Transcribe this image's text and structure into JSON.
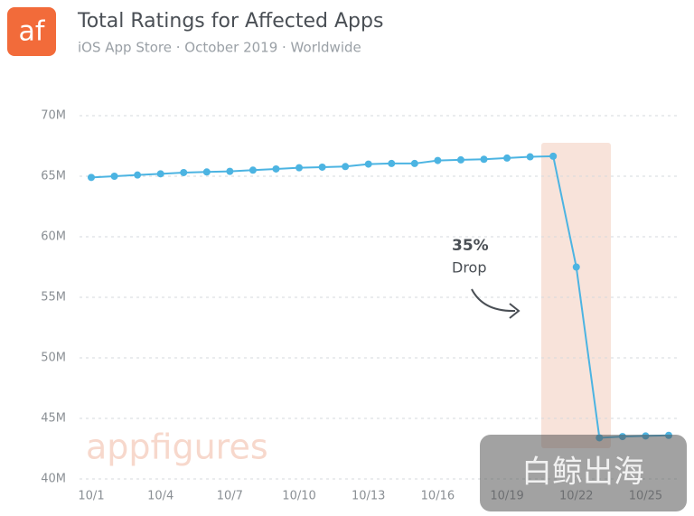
{
  "logo": "af",
  "watermark": "appfigures",
  "overlay_watermark": "白鲸出海",
  "chart_data": {
    "type": "line",
    "title": "Total Ratings for Affected Apps",
    "subtitle": "iOS App Store · October 2019 · Worldwide",
    "annotation": {
      "value": "35%",
      "text": "Drop"
    },
    "categories": [
      "10/1",
      null,
      null,
      "10/4",
      null,
      null,
      "10/7",
      null,
      null,
      "10/10",
      null,
      null,
      "10/13",
      null,
      null,
      "10/16",
      null,
      null,
      "10/19",
      null,
      null,
      "10/22",
      null,
      null,
      "10/25",
      null
    ],
    "series": [
      {
        "name": "Total Ratings",
        "color": "#4cb4e2",
        "values": [
          64900000,
          65000000,
          65100000,
          65200000,
          65300000,
          65350000,
          65400000,
          65500000,
          65600000,
          65700000,
          65750000,
          65800000,
          66000000,
          66050000,
          66050000,
          66300000,
          66350000,
          66400000,
          66500000,
          66600000,
          66650000,
          57500000,
          43400000,
          43500000,
          43550000,
          43600000
        ]
      }
    ],
    "ylim": [
      40000000,
      70000000
    ],
    "yticks": [
      {
        "value": 40000000,
        "label": "40M"
      },
      {
        "value": 45000000,
        "label": "45M"
      },
      {
        "value": 50000000,
        "label": "50M"
      },
      {
        "value": 55000000,
        "label": "55M"
      },
      {
        "value": 60000000,
        "label": "60M"
      },
      {
        "value": 65000000,
        "label": "65M"
      },
      {
        "value": 70000000,
        "label": "70M"
      }
    ],
    "grid": true
  }
}
